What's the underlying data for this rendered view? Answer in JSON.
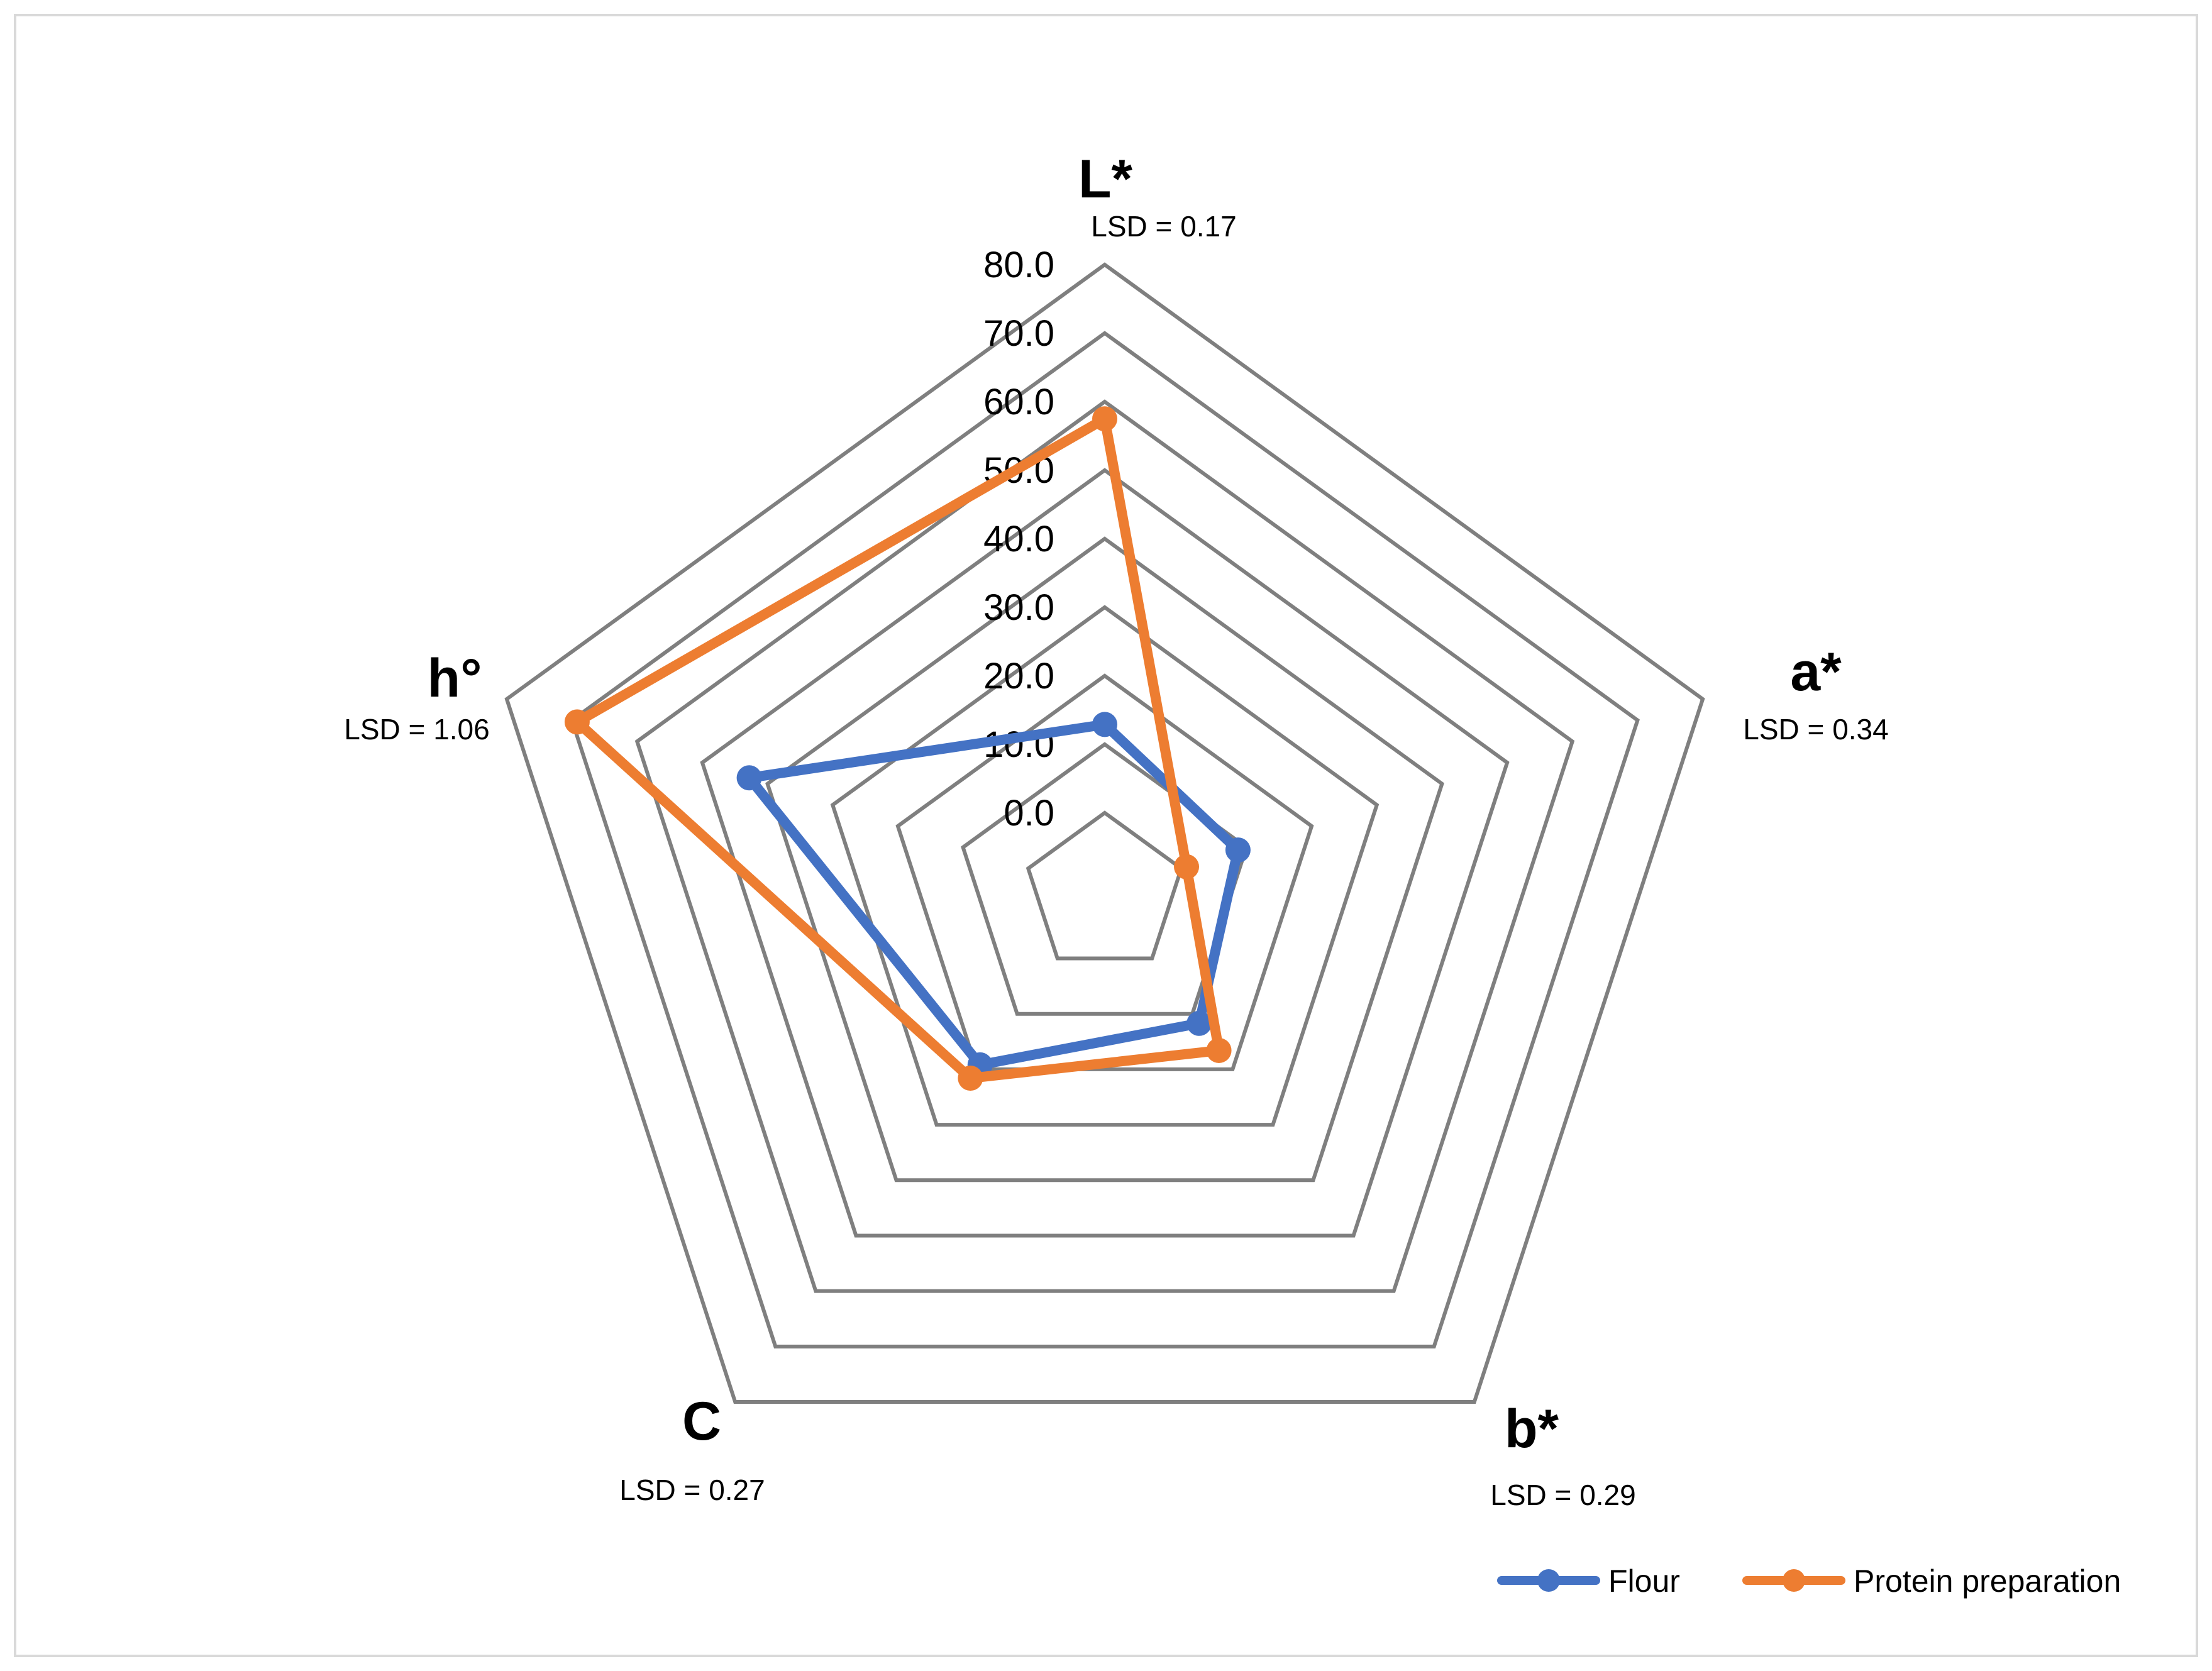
{
  "chart_data": {
    "type": "radar",
    "axes": [
      {
        "name": "L*",
        "note": "LSD = 0.17"
      },
      {
        "name": "a*",
        "note": "LSD = 0.34"
      },
      {
        "name": "b*",
        "note": "LSD = 0.29"
      },
      {
        "name": "C",
        "note": "LSD = 0.27"
      },
      {
        "name": "h°",
        "note": "LSD = 1.06"
      }
    ],
    "ticks": [
      "0.0",
      "10.0",
      "20.0",
      "30.0",
      "40.0",
      "50.0",
      "60.0",
      "70.0",
      "80.0"
    ],
    "range": [
      0,
      80
    ],
    "series": [
      {
        "name": "Flour",
        "color": "#4472c4",
        "values": [
          12.9,
          8.7,
          11.7,
          19.2,
          42.8
        ]
      },
      {
        "name": "Protein preparation",
        "color": "#ed7d31",
        "values": [
          57.5,
          0.8,
          16.6,
          21.6,
          69.2
        ]
      }
    ],
    "legend": "bottom-right",
    "grid": true
  }
}
